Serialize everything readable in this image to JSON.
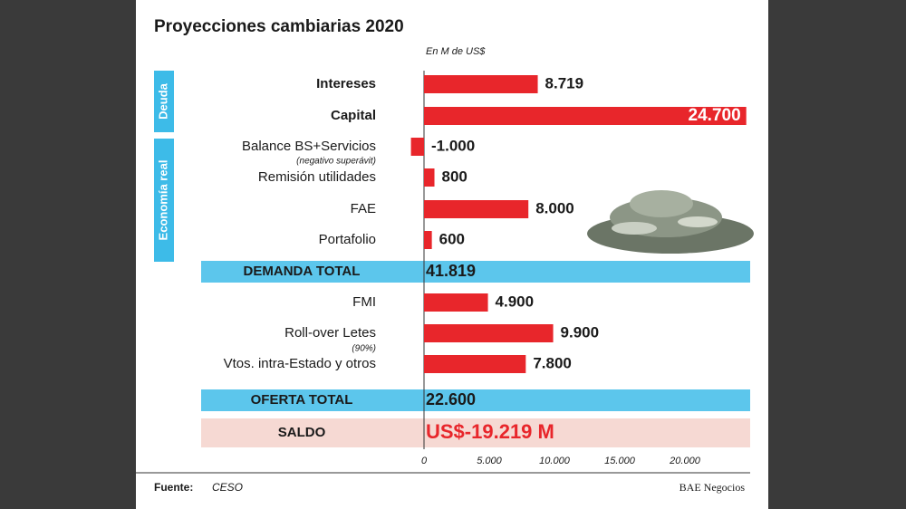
{
  "chart_data": {
    "type": "bar",
    "orientation": "horizontal",
    "title": "Proyecciones cambiarias 2020",
    "subtitle": "En M de US$",
    "groups": [
      "Deuda",
      "Economía real"
    ],
    "categories": [
      "Intereses",
      "Capital",
      "Balance BS+Servicios",
      "Remisión utilidades",
      "FAE",
      "Portafolio",
      "FMI",
      "Roll-over Letes",
      "Vtos. intra-Estado y otros"
    ],
    "annotations": [
      "(negativo superávit)",
      "(90%)"
    ],
    "values": [
      8719,
      24700,
      -1000,
      800,
      8000,
      600,
      4900,
      9900,
      7800
    ],
    "value_labels": [
      "8.719",
      "24.700",
      "-1.000",
      "800",
      "8.000",
      "600",
      "4.900",
      "9.900",
      "7.800"
    ],
    "color": "#e8262b",
    "totals": [
      {
        "name": "DEMANDA TOTAL",
        "label": "41.819"
      },
      {
        "name": "OFERTA TOTAL",
        "label": "22.600"
      },
      {
        "name": "SALDO",
        "label": "US$-19.219 M"
      }
    ],
    "xlim": [
      -1000,
      25000
    ],
    "xticks": [
      0,
      {
        "value": 5000,
        "label": "5.000"
      },
      {
        "value": 10000,
        "label": "10.000"
      },
      {
        "value": 15000,
        "label": "15.000"
      },
      {
        "value": 20000,
        "label": "20.000"
      }
    ],
    "source_label": "Fuente:",
    "source": "CESO",
    "credit": "BAE Negocios"
  }
}
